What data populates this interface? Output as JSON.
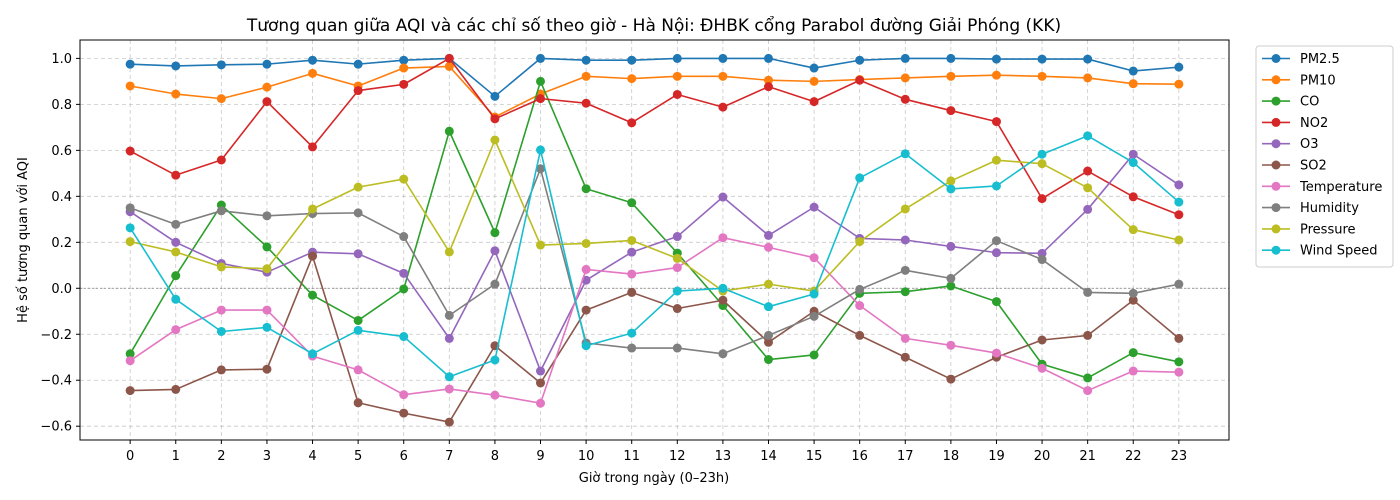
{
  "chart_data": {
    "type": "line",
    "title": "Tương quan giữa AQI và các chỉ số theo giờ - Hà Nội: ĐHBK cổng Parabol đường Giải Phóng (KK)",
    "xlabel": "Giờ trong ngày (0–23h)",
    "ylabel": "Hệ số tương quan với AQI",
    "x": [
      0,
      1,
      2,
      3,
      4,
      5,
      6,
      7,
      8,
      9,
      10,
      11,
      12,
      13,
      14,
      15,
      16,
      17,
      18,
      19,
      20,
      21,
      22,
      23
    ],
    "x_tick_labels": [
      "0",
      "1",
      "2",
      "3",
      "4",
      "5",
      "6",
      "7",
      "8",
      "9",
      "10",
      "11",
      "12",
      "13",
      "14",
      "15",
      "16",
      "17",
      "18",
      "19",
      "20",
      "21",
      "22",
      "23"
    ],
    "xlim": [
      -1.1,
      24.1
    ],
    "ylim": [
      -0.66,
      1.08
    ],
    "y_ticks": [
      -0.6,
      -0.4,
      -0.2,
      0.0,
      0.2,
      0.4,
      0.6,
      0.8,
      1.0
    ],
    "y_tick_labels": [
      "−0.6",
      "−0.4",
      "−0.2",
      "0.0",
      "0.2",
      "0.4",
      "0.6",
      "0.8",
      "1.0"
    ],
    "grid": true,
    "zero_line": true,
    "legend_position": "outside-right-top",
    "series": [
      {
        "name": "PM2.5",
        "color": "#1f77b4",
        "values": [
          0.975,
          0.967,
          0.972,
          0.975,
          0.992,
          0.975,
          0.992,
          1.0,
          0.835,
          1.0,
          0.992,
          0.992,
          1.0,
          1.0,
          1.0,
          0.958,
          0.992,
          1.0,
          1.0,
          0.997,
          0.997,
          0.997,
          0.945,
          0.962
        ]
      },
      {
        "name": "PM10",
        "color": "#ff7f0e",
        "values": [
          0.88,
          0.845,
          0.825,
          0.875,
          0.935,
          0.88,
          0.958,
          0.965,
          0.745,
          0.845,
          0.922,
          0.912,
          0.922,
          0.922,
          0.905,
          0.9,
          0.908,
          0.915,
          0.922,
          0.927,
          0.922,
          0.915,
          0.89,
          0.888
        ]
      },
      {
        "name": "CO",
        "color": "#2ca02c",
        "values": [
          -0.285,
          0.055,
          0.362,
          0.18,
          -0.03,
          -0.14,
          -0.003,
          0.683,
          0.242,
          0.9,
          0.433,
          0.372,
          0.153,
          -0.075,
          -0.31,
          -0.29,
          -0.022,
          -0.015,
          0.01,
          -0.058,
          -0.33,
          -0.39,
          -0.28,
          -0.32
        ]
      },
      {
        "name": "NO2",
        "color": "#d62728",
        "values": [
          0.597,
          0.492,
          0.558,
          0.812,
          0.615,
          0.86,
          0.887,
          1.0,
          0.737,
          0.825,
          0.805,
          0.72,
          0.843,
          0.788,
          0.877,
          0.812,
          0.905,
          0.822,
          0.773,
          0.725,
          0.39,
          0.51,
          0.398,
          0.32
        ]
      },
      {
        "name": "O3",
        "color": "#9467bd",
        "values": [
          0.333,
          0.2,
          0.108,
          0.07,
          0.157,
          0.15,
          0.065,
          -0.218,
          0.163,
          -0.36,
          0.035,
          0.157,
          0.225,
          0.397,
          0.23,
          0.353,
          0.217,
          0.21,
          0.182,
          0.155,
          0.152,
          0.343,
          0.583,
          0.45
        ]
      },
      {
        "name": "SO2",
        "color": "#8c564b",
        "values": [
          -0.445,
          -0.44,
          -0.355,
          -0.352,
          0.14,
          -0.498,
          -0.543,
          -0.582,
          -0.25,
          -0.412,
          -0.095,
          -0.018,
          -0.088,
          -0.052,
          -0.235,
          -0.1,
          -0.205,
          -0.3,
          -0.395,
          -0.3,
          -0.225,
          -0.205,
          -0.052,
          -0.218
        ]
      },
      {
        "name": "Temperature",
        "color": "#e377c2",
        "values": [
          -0.315,
          -0.18,
          -0.095,
          -0.095,
          -0.295,
          -0.355,
          -0.463,
          -0.438,
          -0.465,
          -0.5,
          0.082,
          0.062,
          0.09,
          0.22,
          0.178,
          0.133,
          -0.075,
          -0.218,
          -0.248,
          -0.282,
          -0.348,
          -0.445,
          -0.36,
          -0.365
        ]
      },
      {
        "name": "Humidity",
        "color": "#7f7f7f",
        "values": [
          0.35,
          0.278,
          0.337,
          0.315,
          0.325,
          0.328,
          0.225,
          -0.118,
          0.018,
          0.52,
          -0.238,
          -0.26,
          -0.26,
          -0.285,
          -0.205,
          -0.122,
          -0.005,
          0.078,
          0.043,
          0.207,
          0.125,
          -0.018,
          -0.022,
          0.018
        ]
      },
      {
        "name": "Pressure",
        "color": "#bcbd22",
        "values": [
          0.203,
          0.158,
          0.093,
          0.085,
          0.345,
          0.44,
          0.475,
          0.158,
          0.645,
          0.188,
          0.195,
          0.208,
          0.13,
          -0.012,
          0.018,
          -0.012,
          0.203,
          0.345,
          0.467,
          0.557,
          0.542,
          0.437,
          0.255,
          0.21
        ]
      },
      {
        "name": "Wind Speed",
        "color": "#17becf",
        "values": [
          0.263,
          -0.048,
          -0.188,
          -0.17,
          -0.285,
          -0.183,
          -0.21,
          -0.385,
          -0.312,
          0.602,
          -0.25,
          -0.195,
          -0.012,
          0.0,
          -0.08,
          -0.025,
          0.48,
          0.585,
          0.432,
          0.445,
          0.583,
          0.663,
          0.547,
          0.375
        ]
      }
    ]
  }
}
